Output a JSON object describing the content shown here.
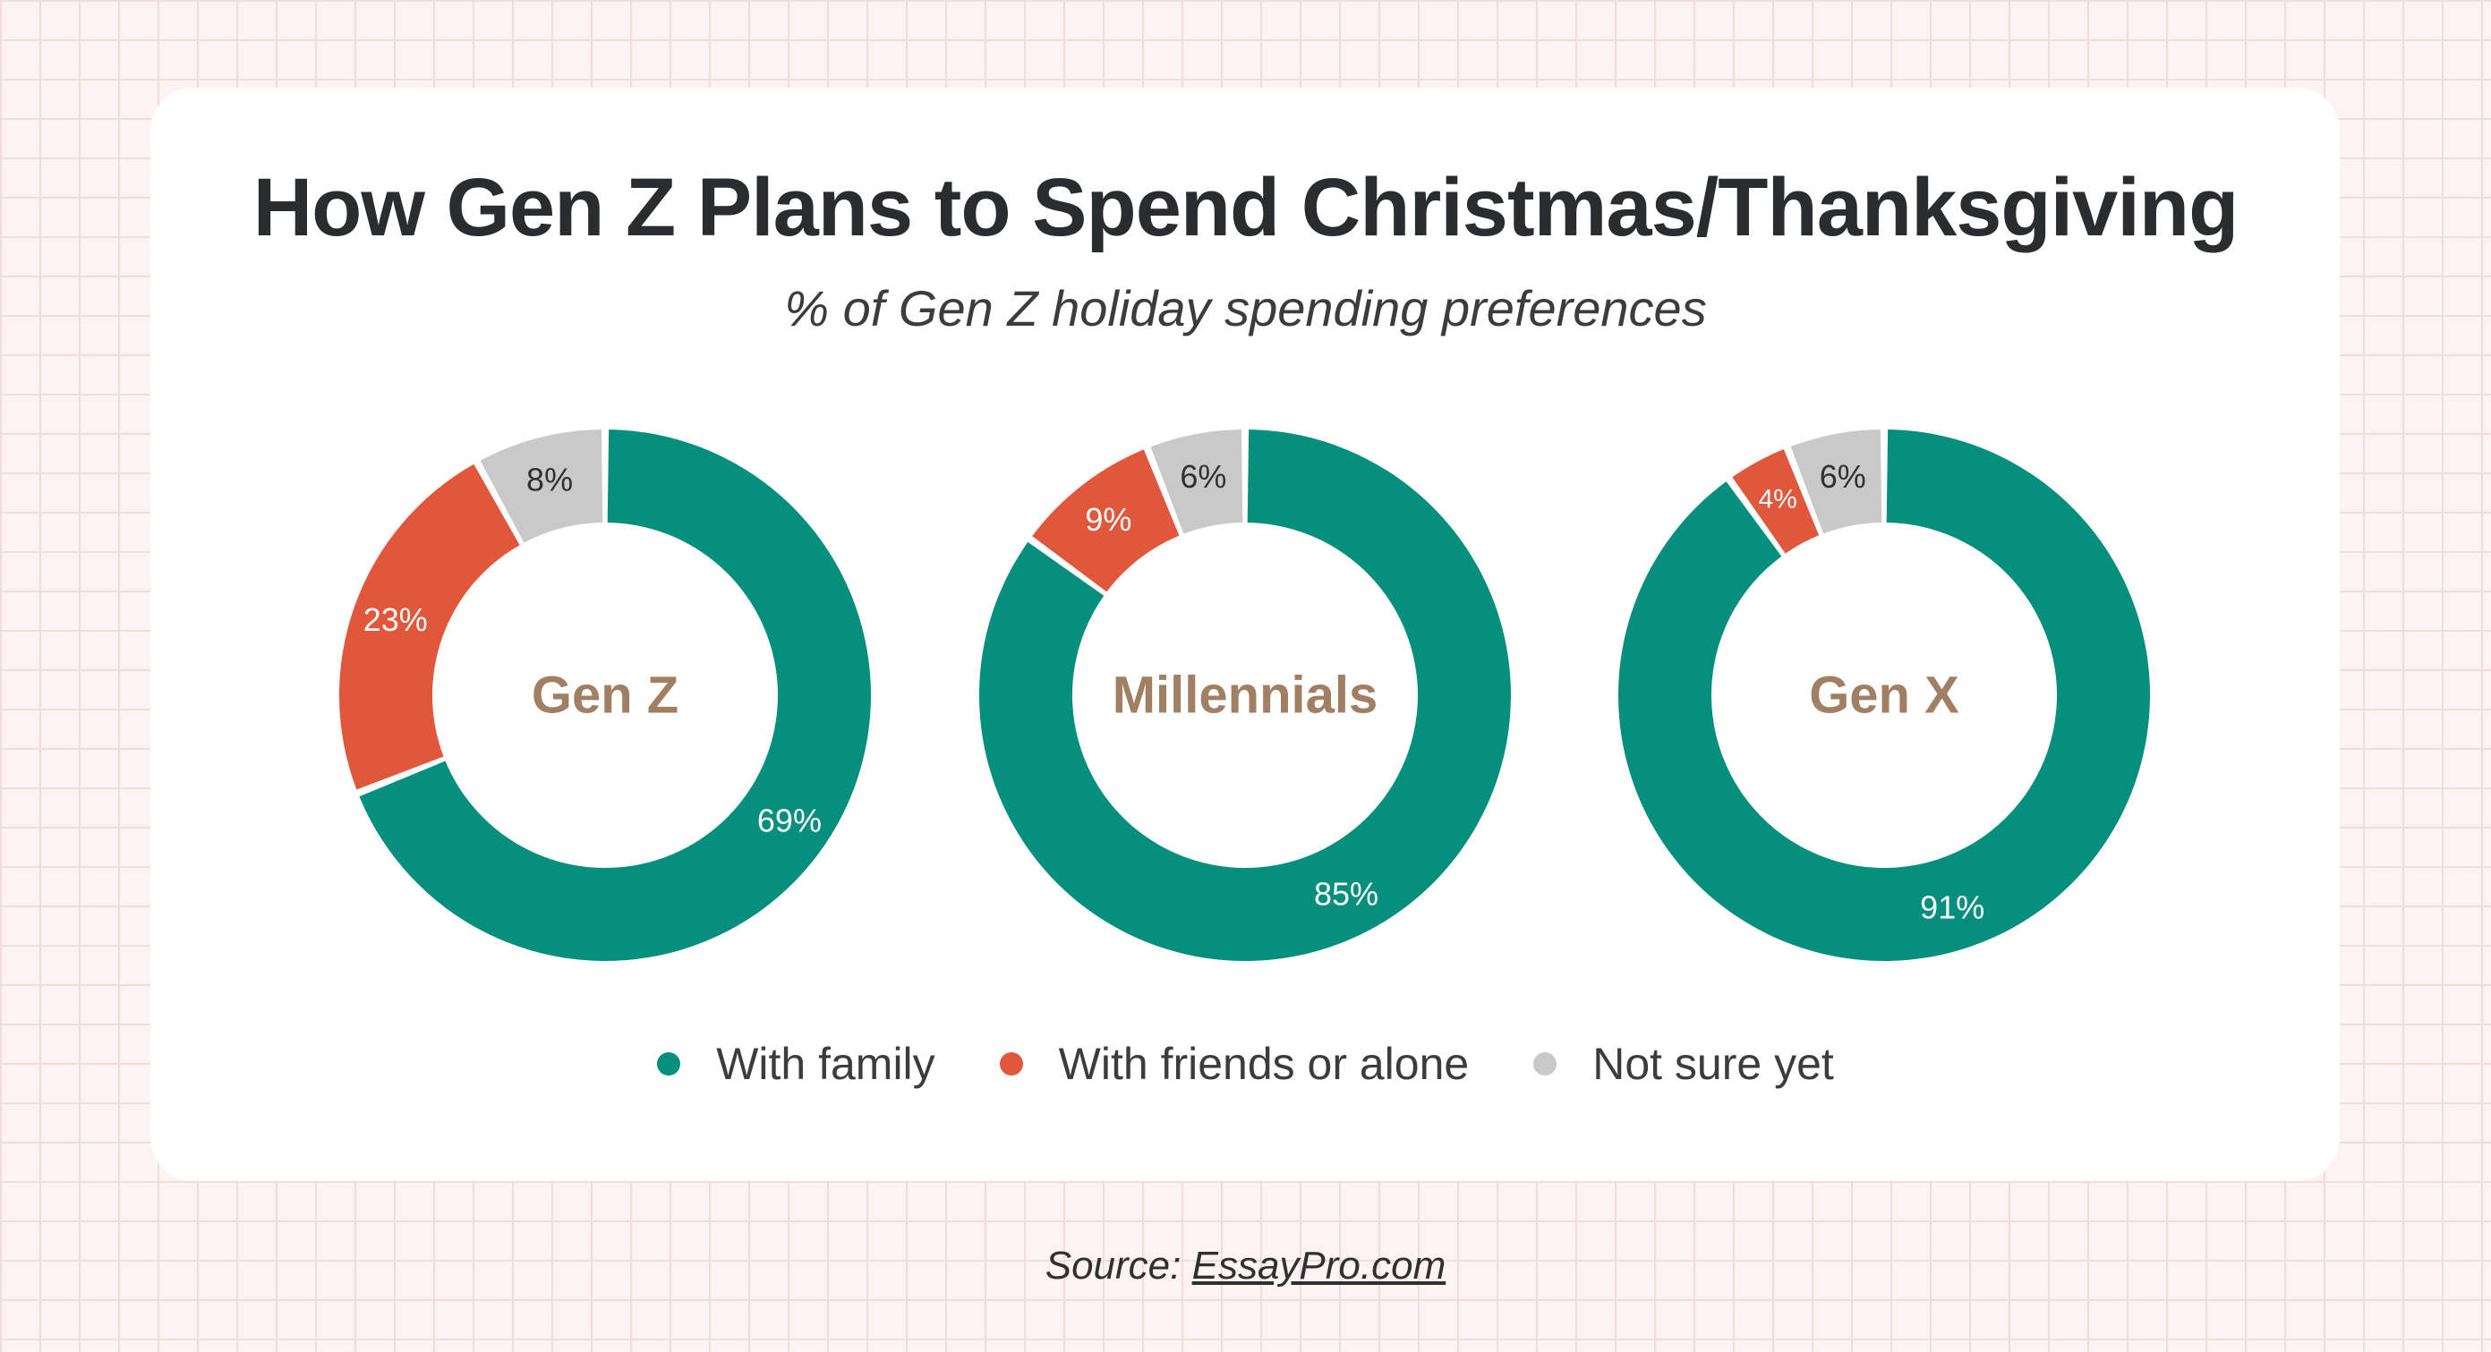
{
  "header": {
    "title": "How Gen Z Plans to Spend Christmas/Thanksgiving",
    "subtitle": "% of Gen Z holiday spending preferences"
  },
  "colors": {
    "with_family": "#078f7e",
    "with_friends_or_alone": "#e0573c",
    "not_sure_yet": "#c9c9c9",
    "center_label": "#a07f62"
  },
  "legend": {
    "placement": "bottom-center",
    "items": [
      {
        "label": "With family",
        "color": "#078f7e"
      },
      {
        "label": "With friends or alone",
        "color": "#e0573c"
      },
      {
        "label": "Not sure yet",
        "color": "#c9c9c9"
      }
    ]
  },
  "chart_data": [
    {
      "type": "pie",
      "variant": "donut",
      "title": "Gen Z",
      "categories": [
        "With family",
        "With friends or alone",
        "Not sure yet"
      ],
      "values": [
        69,
        23,
        8
      ],
      "labels": [
        "69%",
        "23%",
        "8%"
      ]
    },
    {
      "type": "pie",
      "variant": "donut",
      "title": "Millennials",
      "categories": [
        "With family",
        "With friends or alone",
        "Not sure yet"
      ],
      "values": [
        85,
        9,
        6
      ],
      "labels": [
        "85%",
        "9%",
        "6%"
      ]
    },
    {
      "type": "pie",
      "variant": "donut",
      "title": "Gen X",
      "categories": [
        "With family",
        "With friends or alone",
        "Not sure yet"
      ],
      "values": [
        91,
        4,
        6
      ],
      "labels": [
        "91%",
        "4%",
        "6%"
      ]
    }
  ],
  "footer": {
    "source_prefix": "Source: ",
    "source_link": "EssayPro.com"
  }
}
